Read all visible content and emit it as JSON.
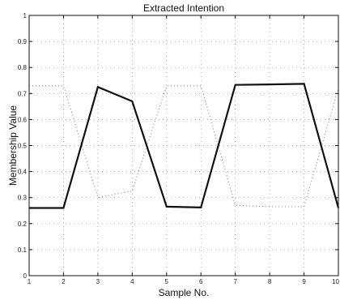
{
  "chart_data": {
    "type": "line",
    "title": "Extracted Intention",
    "xlabel": "Sample No.",
    "ylabel": "Membership Value",
    "xlim": [
      1,
      10
    ],
    "ylim": [
      0,
      1
    ],
    "xticks": [
      "1",
      "2",
      "3",
      "4",
      "5",
      "6",
      "7",
      "8",
      "9",
      "10"
    ],
    "yticks": [
      "0",
      "0.1",
      "0.2",
      "0.3",
      "0.4",
      "0.5",
      "0.6",
      "0.7",
      "0.8",
      "0.9",
      "1"
    ],
    "grid": true,
    "series": [
      {
        "color": "#111111",
        "style": "solid",
        "x": [
          1,
          2,
          3,
          4,
          5,
          6,
          7,
          8,
          9,
          10
        ],
        "y": [
          0.26,
          0.26,
          0.725,
          0.67,
          0.265,
          0.262,
          0.733,
          0.735,
          0.737,
          0.26
        ]
      },
      {
        "color": "#7a7a7a",
        "style": "dotted",
        "x": [
          1,
          2,
          3,
          4,
          5,
          6,
          7,
          8,
          9,
          10
        ],
        "y": [
          0.73,
          0.73,
          0.3,
          0.325,
          0.73,
          0.73,
          0.27,
          0.265,
          0.265,
          0.72
        ]
      }
    ]
  }
}
